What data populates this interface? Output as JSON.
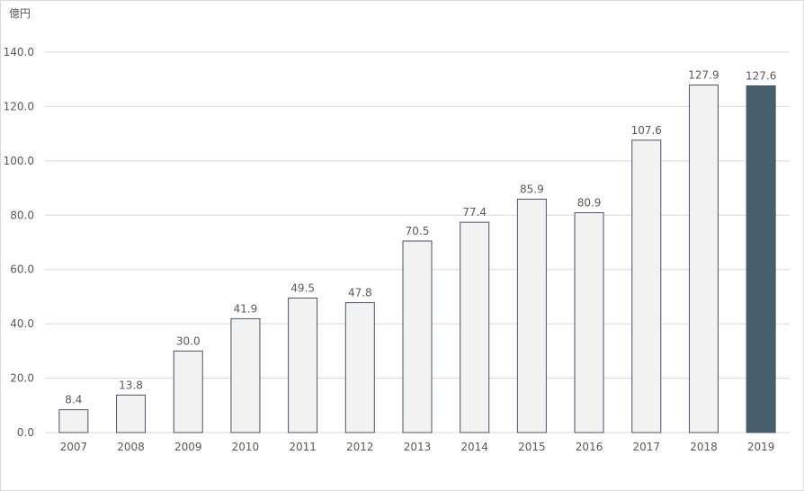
{
  "chart_data": {
    "type": "bar",
    "unit_label": "億円",
    "categories": [
      "2007",
      "2008",
      "2009",
      "2010",
      "2011",
      "2012",
      "2013",
      "2014",
      "2015",
      "2016",
      "2017",
      "2018",
      "2019"
    ],
    "values": [
      8.4,
      13.8,
      30.0,
      41.9,
      49.5,
      47.8,
      70.5,
      77.4,
      85.9,
      80.9,
      107.6,
      127.9,
      127.6
    ],
    "data_labels": [
      "8.4",
      "13.8",
      "30.0",
      "41.9",
      "49.5",
      "47.8",
      "70.5",
      "77.4",
      "85.9",
      "80.9",
      "107.6",
      "127.9",
      "127.6"
    ],
    "ylim": [
      0,
      140
    ],
    "yticks": [
      "0.0",
      "20.0",
      "40.0",
      "60.0",
      "80.0",
      "100.0",
      "120.0",
      "140.0"
    ],
    "grid": true,
    "colors": {
      "bar_fill": "#f2f2f2",
      "bar_stroke": "#44546a",
      "highlight_fill": "#475e6b",
      "grid": "#d9d9d9"
    },
    "highlight_category": "2019"
  }
}
